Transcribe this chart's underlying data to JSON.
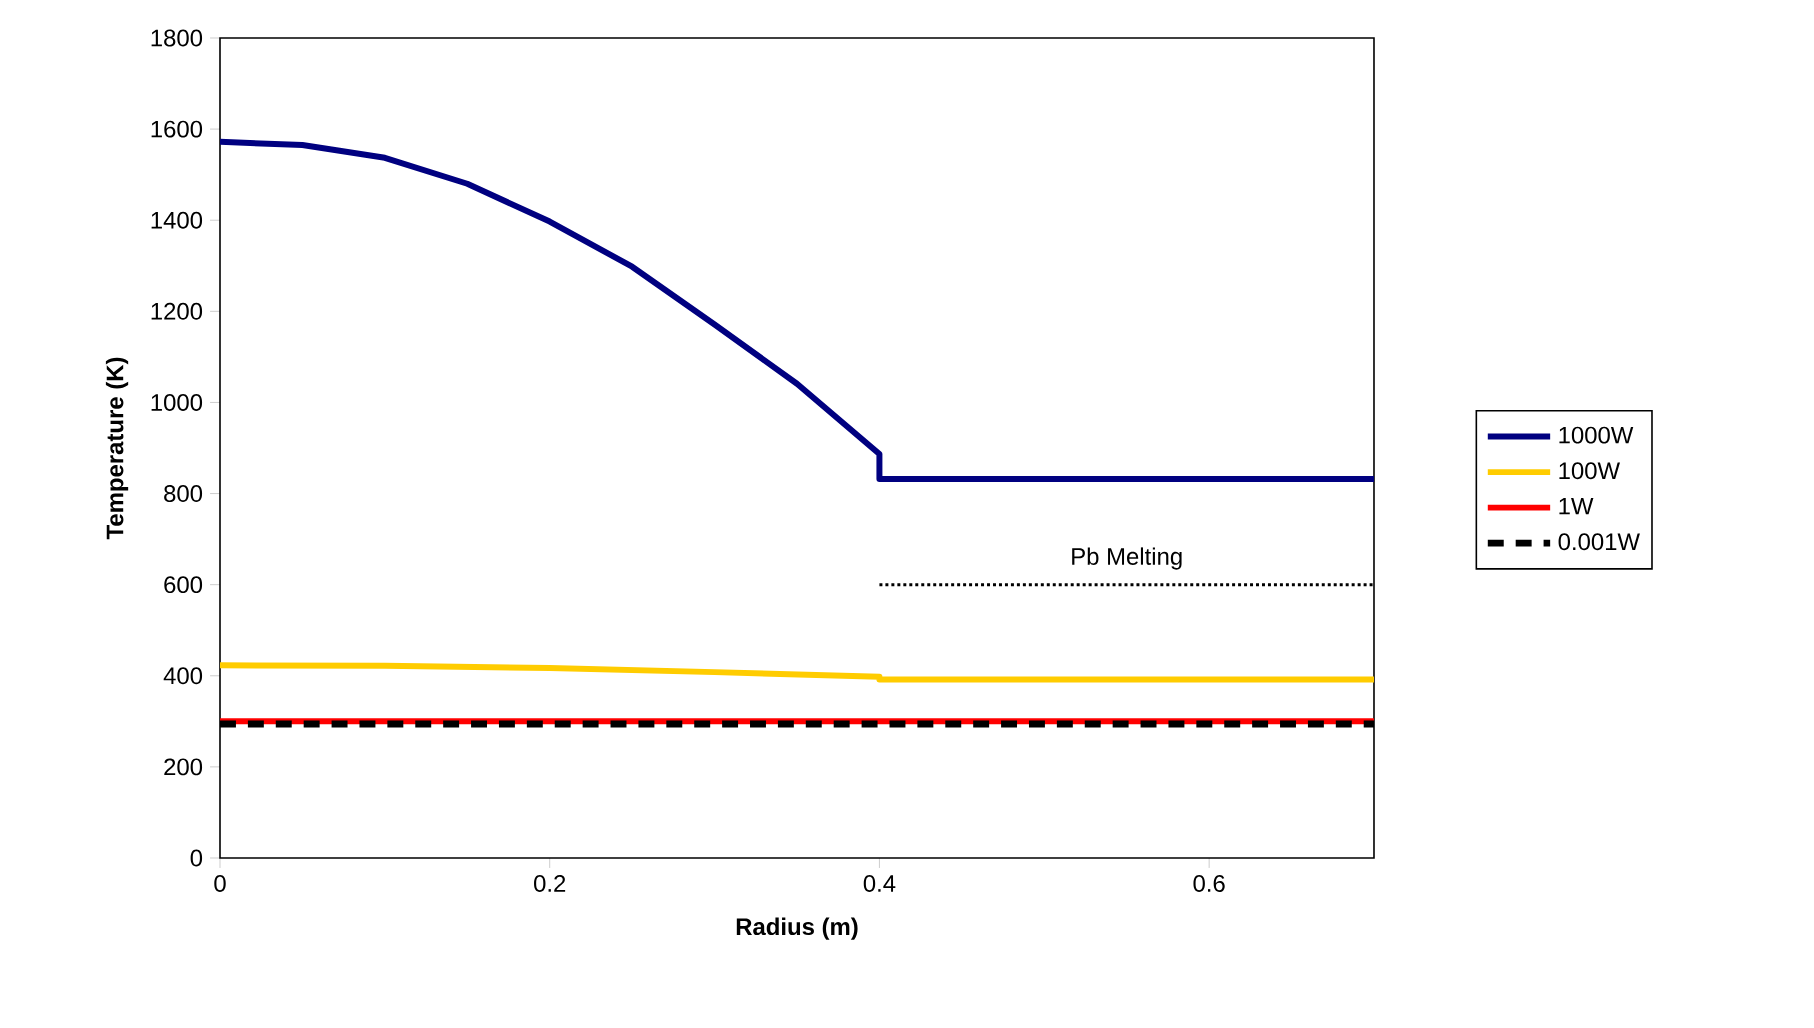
{
  "chart_data": {
    "type": "line",
    "xlabel": "Radius (m)",
    "ylabel": "Temperature (K)",
    "xlim": [
      0,
      0.7
    ],
    "ylim": [
      0,
      1800
    ],
    "xticks": [
      0,
      0.2,
      0.4,
      0.6
    ],
    "yticks": [
      0,
      200,
      400,
      600,
      800,
      1000,
      1200,
      1400,
      1600,
      1800
    ],
    "grid": false,
    "legend": "right",
    "marker": "none",
    "series": [
      {
        "name": "1000W",
        "color": "#000080",
        "line_style": "solid",
        "x": [
          0,
          0.05,
          0.1,
          0.15,
          0.2,
          0.25,
          0.3,
          0.35,
          0.4,
          0.4,
          0.7
        ],
        "values": [
          1572,
          1565,
          1537,
          1480,
          1397,
          1298,
          1171,
          1041,
          887,
          832,
          832
        ]
      },
      {
        "name": "100W",
        "color": "#ffcc00",
        "line_style": "solid",
        "x": [
          0,
          0.1,
          0.2,
          0.3,
          0.4,
          0.4,
          0.7
        ],
        "values": [
          423,
          422,
          417,
          408,
          398,
          392,
          392
        ]
      },
      {
        "name": "1W",
        "color": "#ff0000",
        "line_style": "solid",
        "x": [
          0,
          0.7
        ],
        "values": [
          300,
          300
        ]
      },
      {
        "name": "0.001W",
        "color": "#000000",
        "line_style": "dashed",
        "x": [
          0,
          0.7
        ],
        "values": [
          294,
          294
        ]
      },
      {
        "color": "#000000",
        "line_style": "dotted",
        "x": [
          0.4,
          0.7
        ],
        "values": [
          600,
          600
        ]
      }
    ],
    "annotations": [
      {
        "text": "Pb Melting",
        "x": 0.55,
        "y": 600
      }
    ]
  }
}
